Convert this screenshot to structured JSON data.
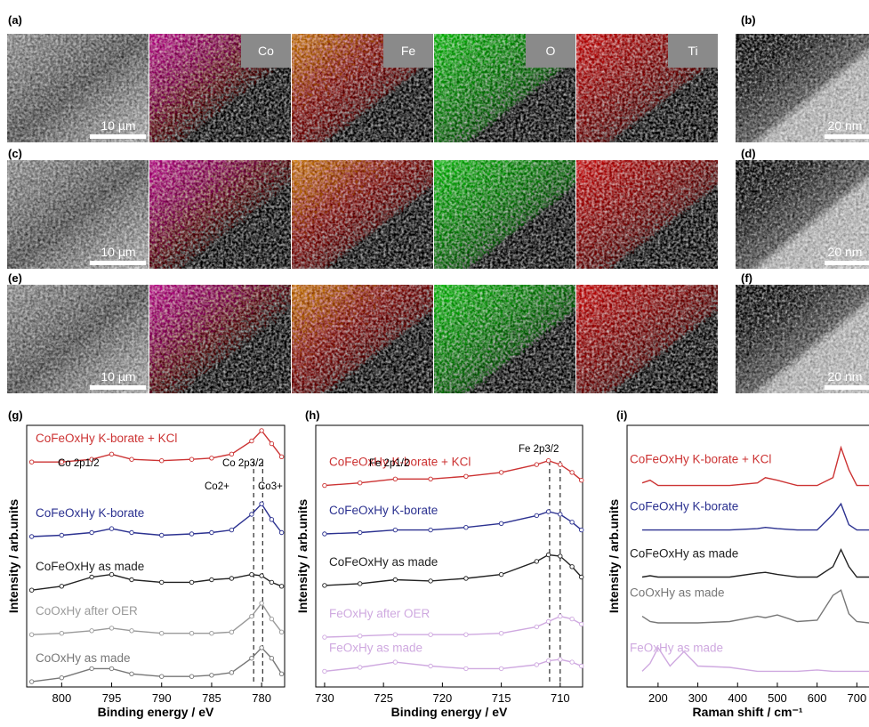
{
  "panel_labels": [
    "(a)",
    "(b)",
    "(c)",
    "(d)",
    "(e)",
    "(f)",
    "(g)",
    "(h)",
    "(i)"
  ],
  "map_labels": [
    "Co",
    "Fe",
    "O",
    "Ti"
  ],
  "scale_bars": {
    "sem": "10 µm",
    "tem": "20 nm"
  },
  "chart_data": [
    {
      "type": "line",
      "xlabel": "Binding energy / eV",
      "ylabel": "Intensity / arb.units",
      "xlim": [
        803.5,
        777.7
      ],
      "xticks": [
        800,
        795,
        790,
        785,
        780
      ],
      "ylim": [
        0,
        100
      ],
      "markers": true,
      "x": [
        803,
        800,
        797,
        795,
        793,
        790,
        787,
        785,
        783,
        781,
        780,
        779,
        778
      ],
      "series": [
        {
          "name": "CoFeOxHy K-borate + KCl",
          "color": "#cc3333",
          "values": [
            86,
            86,
            87,
            89,
            87,
            86.5,
            87,
            87.5,
            89,
            94,
            98,
            93,
            88
          ]
        },
        {
          "name": "CoFeOxHy K-borate",
          "color": "#2b3190",
          "values": [
            57.5,
            58,
            59,
            60.5,
            59,
            58,
            58.5,
            59,
            60,
            66,
            70,
            64,
            59
          ]
        },
        {
          "name": "CoFeOxHy as made",
          "color": "#222222",
          "values": [
            37,
            38.5,
            42,
            43,
            41,
            40,
            40,
            41,
            41.5,
            43,
            42.5,
            40,
            38.5
          ]
        },
        {
          "name": "CoOxHy after OER",
          "color": "#9a9a9a",
          "values": [
            20,
            20.5,
            21.5,
            22.5,
            21.5,
            20.5,
            20.5,
            20.5,
            21,
            27,
            32,
            26,
            21
          ]
        },
        {
          "name": "CoOxHy as made",
          "color": "#777777",
          "values": [
            2,
            3.5,
            7,
            7,
            5,
            4,
            4,
            4.5,
            5.5,
            11,
            15,
            11,
            5
          ]
        }
      ],
      "annotations": [
        "Co 2p1/2",
        "Co 2p3/2",
        "Co2+",
        "Co3+"
      ],
      "vlines": [
        780.8,
        779.9
      ]
    },
    {
      "type": "line",
      "xlabel": "Binding energy / eV",
      "ylabel": "Intensity / arb.units",
      "xlim": [
        730.75,
        708.1
      ],
      "xticks": [
        730,
        725,
        720,
        715,
        710
      ],
      "ylim": [
        0,
        100
      ],
      "markers": true,
      "x": [
        730,
        727,
        724,
        721,
        718,
        715,
        712,
        711,
        710,
        709,
        708.2
      ],
      "series": [
        {
          "name": "CoFeOxHy K-borate + KCl",
          "color": "#cc3333",
          "values": [
            77,
            78,
            79.5,
            79.5,
            80.5,
            82,
            85,
            86.5,
            85,
            82,
            79
          ]
        },
        {
          "name": "CoFeOxHy K-borate",
          "color": "#2b3190",
          "values": [
            58.5,
            59,
            60,
            60,
            61,
            62.5,
            65.5,
            67,
            66,
            63,
            60
          ]
        },
        {
          "name": "CoFeOxHy as made",
          "color": "#222222",
          "values": [
            38.8,
            39.5,
            41,
            40.5,
            41.5,
            43,
            48,
            50.5,
            50,
            46,
            42
          ]
        },
        {
          "name": "FeOxHy after OER",
          "color": "#cfa9e0",
          "values": [
            19,
            19.5,
            20,
            20,
            20,
            20.5,
            23,
            25,
            27,
            26,
            24
          ]
        },
        {
          "name": "FeOxHy as made",
          "color": "#cfa9e0",
          "values": [
            6,
            7.5,
            9.5,
            8,
            7,
            7,
            8.5,
            10,
            10.5,
            9.5,
            8
          ]
        }
      ],
      "annotations": [
        "Fe 2p1/2",
        "Fe 2p3/2"
      ],
      "vlines": [
        710.9,
        710.0
      ]
    },
    {
      "type": "line",
      "xlabel": "Raman shift / cm⁻¹",
      "ylabel": "Intensity / arb.units",
      "xlim": [
        122,
        782
      ],
      "xticks": [
        200,
        300,
        400,
        500,
        600,
        700
      ],
      "ylim": [
        0,
        100
      ],
      "markers": false,
      "x": [
        160,
        180,
        200,
        230,
        265,
        300,
        380,
        450,
        470,
        500,
        550,
        600,
        640,
        660,
        680,
        700,
        730,
        770
      ],
      "series": [
        {
          "name": "CoFeOxHy K-borate + KCl",
          "color": "#cc3333",
          "values": [
            78,
            79,
            77,
            77,
            77,
            77,
            77,
            78,
            80,
            79,
            77,
            77,
            80,
            91.5,
            83,
            77,
            77,
            77
          ]
        },
        {
          "name": "CoFeOxHy K-borate",
          "color": "#2b3190",
          "values": [
            60,
            60,
            60,
            60,
            60,
            60,
            60,
            60.5,
            61,
            60.5,
            60,
            60,
            66,
            70,
            62,
            60,
            60,
            60
          ]
        },
        {
          "name": "CoFeOxHy as made",
          "color": "#222222",
          "values": [
            42,
            42.5,
            42,
            42,
            42,
            42,
            42,
            43.5,
            43.8,
            43,
            42,
            42,
            46,
            52.5,
            46,
            42,
            42,
            42
          ]
        },
        {
          "name": "CoOxHy as made",
          "color": "#777777",
          "values": [
            27,
            25,
            24.5,
            24.5,
            24.5,
            24.5,
            25,
            27,
            26.5,
            27.5,
            25,
            25.5,
            35,
            37,
            28,
            25,
            24.5,
            24.5
          ]
        },
        {
          "name": "FeOxHy as made",
          "color": "#cfa9e0",
          "values": [
            6,
            9,
            15,
            8,
            13.5,
            8,
            7.5,
            6,
            6,
            6,
            6,
            6.5,
            6,
            6,
            6,
            6,
            6,
            6
          ]
        }
      ],
      "annotations": [],
      "vlines": []
    }
  ]
}
